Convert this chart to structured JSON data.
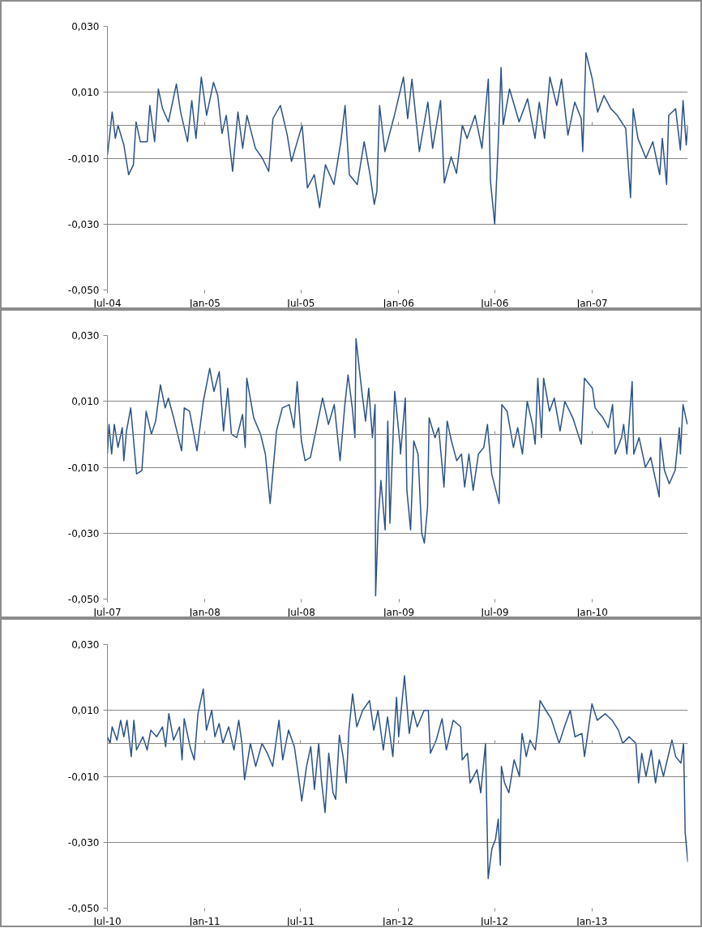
{
  "chart_data": [
    {
      "type": "line",
      "xlim": [
        "2004-07-01",
        "2007-06-30"
      ],
      "ylim": [
        -0.05,
        0.03
      ],
      "yticks": [
        {
          "value": -0.05,
          "label": "-0,050"
        },
        {
          "value": -0.03,
          "label": "-0,030"
        },
        {
          "value": -0.01,
          "label": "-0,010"
        },
        {
          "value": 0.01,
          "label": "0,010"
        },
        {
          "value": 0.03,
          "label": "0,030"
        }
      ],
      "xticks": [
        {
          "value": "2004-07-01",
          "label": "Jul-04"
        },
        {
          "value": "2005-01-01",
          "label": "Jan-05"
        },
        {
          "value": "2005-07-01",
          "label": "Jul-05"
        },
        {
          "value": "2006-01-01",
          "label": "Jan-06"
        },
        {
          "value": "2006-07-01",
          "label": "Jul-06"
        },
        {
          "value": "2007-01-01",
          "label": "Jan-07"
        }
      ],
      "grid": "y",
      "series": [
        {
          "color": "#2a5286",
          "x": [
            "2004-07-01",
            "2004-07-04",
            "2004-07-10",
            "2004-07-16",
            "2004-07-21",
            "2004-08-01",
            "2004-08-10",
            "2004-08-19",
            "2004-08-24",
            "2004-09-01",
            "2004-09-14",
            "2004-09-19",
            "2004-09-28",
            "2004-10-05",
            "2004-10-13",
            "2004-10-24",
            "2004-11-08",
            "2004-11-16",
            "2004-11-29",
            "2004-12-07",
            "2004-12-15",
            "2004-12-25",
            "2005-01-04",
            "2005-01-17",
            "2005-01-25",
            "2005-02-02",
            "2005-02-10",
            "2005-02-22",
            "2005-03-04",
            "2005-03-13",
            "2005-03-21",
            "2005-04-06",
            "2005-04-19",
            "2005-05-01",
            "2005-05-09",
            "2005-05-23",
            "2005-06-05",
            "2005-06-13",
            "2005-07-03",
            "2005-07-13",
            "2005-07-26",
            "2005-08-05",
            "2005-08-16",
            "2005-09-01",
            "2005-09-14",
            "2005-09-22",
            "2005-09-30",
            "2005-10-15",
            "2005-10-28",
            "2005-11-08",
            "2005-11-16",
            "2005-11-21",
            "2005-11-26",
            "2005-12-06",
            "2005-12-24",
            "2006-01-10",
            "2006-01-18",
            "2006-01-26",
            "2006-02-09",
            "2006-02-25",
            "2006-03-06",
            "2006-03-21",
            "2006-03-28",
            "2006-04-10",
            "2006-04-20",
            "2006-05-01",
            "2006-05-10",
            "2006-05-25",
            "2006-06-07",
            "2006-06-19",
            "2006-06-23",
            "2006-07-01",
            "2006-07-08",
            "2006-07-13",
            "2006-07-17",
            "2006-07-29",
            "2006-08-16",
            "2006-09-01",
            "2006-09-15",
            "2006-09-23",
            "2006-10-03",
            "2006-10-13",
            "2006-10-26",
            "2006-11-04",
            "2006-11-16",
            "2006-11-29",
            "2006-12-11",
            "2006-12-14",
            "2006-12-20",
            "2007-01-01",
            "2007-01-11",
            "2007-01-23",
            "2007-02-05",
            "2007-02-17",
            "2007-03-05",
            "2007-03-14",
            "2007-03-19",
            "2007-03-28",
            "2007-04-12",
            "2007-04-25",
            "2007-05-08",
            "2007-05-13",
            "2007-05-21",
            "2007-05-25",
            "2007-06-07",
            "2007-06-16",
            "2007-06-21",
            "2007-06-27",
            "2007-06-30"
          ],
          "values": [
            -0.009,
            -0.005,
            0.004,
            -0.004,
            0.0,
            -0.006,
            -0.015,
            -0.012,
            0.001,
            -0.005,
            -0.005,
            0.006,
            -0.005,
            0.011,
            0.005,
            0.001,
            0.0125,
            0.004,
            -0.005,
            0.0075,
            -0.004,
            0.0146,
            0.003,
            0.013,
            0.009,
            -0.0025,
            0.003,
            -0.014,
            0.004,
            -0.007,
            0.003,
            -0.007,
            -0.01,
            -0.014,
            0.002,
            0.006,
            -0.003,
            -0.011,
            0.0,
            -0.019,
            -0.015,
            -0.025,
            -0.012,
            -0.018,
            -0.005,
            0.006,
            -0.015,
            -0.018,
            -0.005,
            -0.015,
            -0.024,
            -0.02,
            0.006,
            -0.008,
            0.003,
            0.0146,
            0.002,
            0.014,
            -0.008,
            0.007,
            -0.007,
            0.0075,
            -0.0175,
            -0.0096,
            -0.0146,
            0.0,
            -0.004,
            0.003,
            -0.007,
            0.014,
            -0.017,
            -0.03,
            -0.004,
            0.0175,
            0.0,
            0.011,
            0.001,
            0.008,
            -0.004,
            0.007,
            -0.004,
            0.0146,
            0.006,
            0.014,
            -0.003,
            0.007,
            0.002,
            -0.008,
            0.022,
            0.014,
            0.004,
            0.009,
            0.005,
            0.003,
            -0.001,
            -0.022,
            0.005,
            -0.004,
            -0.01,
            -0.005,
            -0.015,
            -0.004,
            -0.018,
            0.003,
            0.005,
            -0.0075,
            0.0075,
            -0.006,
            0.0
          ]
        }
      ]
    },
    {
      "type": "line",
      "xlim": [
        "2007-07-01",
        "2010-06-30"
      ],
      "ylim": [
        -0.05,
        0.03
      ],
      "yticks": [
        {
          "value": -0.05,
          "label": "-0,050"
        },
        {
          "value": -0.03,
          "label": "-0,030"
        },
        {
          "value": -0.01,
          "label": "-0,010"
        },
        {
          "value": 0.01,
          "label": "0,010"
        },
        {
          "value": 0.03,
          "label": "0,030"
        }
      ],
      "xticks": [
        {
          "value": "2007-07-01",
          "label": "Jul-07"
        },
        {
          "value": "2008-01-01",
          "label": "Jan-08"
        },
        {
          "value": "2008-07-01",
          "label": "Jul-08"
        },
        {
          "value": "2009-01-01",
          "label": "Jan-09"
        },
        {
          "value": "2009-07-01",
          "label": "Jul-09"
        },
        {
          "value": "2010-01-01",
          "label": "Jan-10"
        }
      ],
      "grid": "y",
      "series": [
        {
          "color": "#2a5286",
          "x": [
            "2007-07-01",
            "2007-07-04",
            "2007-07-09",
            "2007-07-14",
            "2007-07-21",
            "2007-07-29",
            "2007-08-01",
            "2007-08-06",
            "2007-08-14",
            "2007-08-25",
            "2007-09-04",
            "2007-09-12",
            "2007-09-22",
            "2007-09-30",
            "2007-10-09",
            "2007-10-18",
            "2007-10-24",
            "2007-11-03",
            "2007-11-18",
            "2007-11-23",
            "2007-12-03",
            "2007-12-17",
            "2007-12-29",
            "2008-01-10",
            "2008-01-18",
            "2008-01-28",
            "2008-02-05",
            "2008-02-13",
            "2008-02-20",
            "2008-03-01",
            "2008-03-12",
            "2008-03-17",
            "2008-03-20",
            "2008-04-02",
            "2008-04-15",
            "2008-04-24",
            "2008-05-03",
            "2008-05-15",
            "2008-05-26",
            "2008-06-08",
            "2008-06-17",
            "2008-06-23",
            "2008-07-01",
            "2008-07-08",
            "2008-07-18",
            "2008-08-01",
            "2008-08-10",
            "2008-08-21",
            "2008-09-01",
            "2008-09-12",
            "2008-09-21",
            "2008-09-27",
            "2008-10-05",
            "2008-10-10",
            "2008-10-12",
            "2008-10-23",
            "2008-10-30",
            "2008-11-05",
            "2008-11-12",
            "2008-11-17",
            "2008-11-18",
            "2008-11-23",
            "2008-11-28",
            "2008-12-06",
            "2008-12-11",
            "2008-12-15",
            "2008-12-24",
            "2009-01-03",
            "2009-01-04",
            "2009-01-13",
            "2009-01-16",
            "2009-01-23",
            "2009-01-29",
            "2009-02-06",
            "2009-02-13",
            "2009-02-18",
            "2009-02-24",
            "2009-02-27",
            "2009-03-10",
            "2009-03-17",
            "2009-03-27",
            "2009-04-02",
            "2009-04-10",
            "2009-04-20",
            "2009-04-29",
            "2009-05-05",
            "2009-05-13",
            "2009-05-21",
            "2009-05-31",
            "2009-06-10",
            "2009-06-17",
            "2009-06-25",
            "2009-07-09",
            "2009-07-14",
            "2009-07-24",
            "2009-08-05",
            "2009-08-13",
            "2009-08-22",
            "2009-08-31",
            "2009-09-10",
            "2009-09-15",
            "2009-09-20",
            "2009-09-27",
            "2009-10-01",
            "2009-10-12",
            "2009-10-21",
            "2009-11-01",
            "2009-11-10",
            "2009-11-25",
            "2009-12-11",
            "2009-12-17",
            "2010-01-01",
            "2010-01-06",
            "2010-01-21",
            "2010-01-31",
            "2010-02-08",
            "2010-02-13",
            "2010-02-25",
            "2010-03-01",
            "2010-03-07",
            "2010-03-17",
            "2010-03-20",
            "2010-03-30",
            "2010-04-11",
            "2010-04-21",
            "2010-04-29",
            "2010-05-07",
            "2010-05-09",
            "2010-05-17",
            "2010-05-26",
            "2010-06-06",
            "2010-06-14",
            "2010-06-16",
            "2010-06-21",
            "2010-06-29"
          ],
          "values": [
            -0.006,
            0.003,
            -0.006,
            0.003,
            -0.004,
            0.002,
            -0.008,
            0.001,
            0.008,
            -0.012,
            -0.011,
            0.007,
            0.0,
            0.004,
            0.015,
            0.008,
            0.011,
            0.005,
            -0.005,
            0.008,
            0.007,
            -0.005,
            0.01,
            0.02,
            0.013,
            0.019,
            0.001,
            0.014,
            0.0,
            -0.001,
            0.006,
            -0.004,
            0.017,
            0.005,
            0.0,
            -0.006,
            -0.021,
            0.001,
            0.008,
            0.009,
            0.002,
            0.016,
            -0.002,
            -0.008,
            -0.007,
            0.004,
            0.011,
            0.003,
            0.009,
            -0.008,
            0.009,
            0.018,
            0.008,
            -0.001,
            0.029,
            0.013,
            0.004,
            0.014,
            -0.001,
            0.009,
            -0.049,
            -0.026,
            -0.014,
            -0.029,
            0.004,
            -0.027,
            0.013,
            -0.003,
            -0.006,
            0.011,
            -0.017,
            -0.029,
            -0.002,
            -0.006,
            -0.03,
            -0.033,
            -0.022,
            0.005,
            -0.001,
            0.002,
            -0.016,
            0.004,
            -0.002,
            -0.008,
            -0.006,
            -0.016,
            -0.006,
            -0.017,
            -0.006,
            -0.004,
            0.003,
            -0.012,
            -0.021,
            0.009,
            0.007,
            -0.004,
            0.002,
            -0.006,
            0.01,
            0.003,
            -0.003,
            0.017,
            -0.001,
            0.017,
            0.007,
            0.011,
            0.001,
            0.01,
            0.005,
            -0.003,
            0.017,
            0.014,
            0.008,
            0.005,
            0.002,
            0.009,
            -0.006,
            -0.001,
            0.003,
            -0.006,
            0.016,
            -0.006,
            -0.001,
            -0.01,
            -0.007,
            -0.013,
            -0.019,
            -0.001,
            -0.011,
            -0.015,
            -0.011,
            0.002,
            -0.006,
            0.009,
            0.003
          ]
        }
      ]
    },
    {
      "type": "line",
      "xlim": [
        "2010-07-01",
        "2013-07-01"
      ],
      "ylim": [
        -0.05,
        0.03
      ],
      "yticks": [
        {
          "value": -0.05,
          "label": "-0,050"
        },
        {
          "value": -0.03,
          "label": "-0,030"
        },
        {
          "value": -0.01,
          "label": "-0,010"
        },
        {
          "value": 0.01,
          "label": "0,010"
        },
        {
          "value": 0.03,
          "label": "0,030"
        }
      ],
      "xticks": [
        {
          "value": "2010-07-01",
          "label": "Jul-10"
        },
        {
          "value": "2011-01-01",
          "label": "Jan-11"
        },
        {
          "value": "2011-07-01",
          "label": "Jul-11"
        },
        {
          "value": "2012-01-01",
          "label": "Jan-12"
        },
        {
          "value": "2012-07-01",
          "label": "Jul-12"
        },
        {
          "value": "2013-01-01",
          "label": "Jan-13"
        }
      ],
      "grid": "y",
      "series": [
        {
          "color": "#2a5286",
          "x": [
            "2010-07-01",
            "2010-07-06",
            "2010-07-10",
            "2010-07-19",
            "2010-07-26",
            "2010-08-01",
            "2010-08-07",
            "2010-08-15",
            "2010-08-20",
            "2010-08-25",
            "2010-09-06",
            "2010-09-14",
            "2010-09-21",
            "2010-10-02",
            "2010-10-13",
            "2010-10-19",
            "2010-10-25",
            "2010-11-03",
            "2010-11-14",
            "2010-11-19",
            "2010-11-23",
            "2010-12-04",
            "2010-12-12",
            "2010-12-19",
            "2010-12-29",
            "2011-01-04",
            "2011-01-14",
            "2011-01-20",
            "2011-01-28",
            "2011-02-04",
            "2011-02-15",
            "2011-02-25",
            "2011-03-06",
            "2011-03-12",
            "2011-03-17",
            "2011-03-28",
            "2011-04-07",
            "2011-04-19",
            "2011-04-29",
            "2011-05-09",
            "2011-05-21",
            "2011-05-28",
            "2011-06-08",
            "2011-06-19",
            "2011-06-27",
            "2011-07-03",
            "2011-07-12",
            "2011-07-20",
            "2011-07-27",
            "2011-08-04",
            "2011-08-09",
            "2011-08-16",
            "2011-08-23",
            "2011-08-31",
            "2011-09-05",
            "2011-09-12",
            "2011-09-19",
            "2011-09-25",
            "2011-09-30",
            "2011-10-07",
            "2011-10-15",
            "2011-10-26",
            "2011-11-08",
            "2011-11-16",
            "2011-11-24",
            "2011-12-04",
            "2011-12-12",
            "2011-12-22",
            "2011-12-29",
            "2012-01-02",
            "2012-01-13",
            "2012-01-22",
            "2012-01-29",
            "2012-02-06",
            "2012-02-19",
            "2012-02-27",
            "2012-03-02",
            "2012-03-13",
            "2012-03-24",
            "2012-04-01",
            "2012-04-14",
            "2012-04-28",
            "2012-05-01",
            "2012-05-11",
            "2012-05-16",
            "2012-05-29",
            "2012-06-05",
            "2012-06-14",
            "2012-06-19",
            "2012-06-26",
            "2012-07-03",
            "2012-07-08",
            "2012-07-12",
            "2012-07-14",
            "2012-07-20",
            "2012-07-28",
            "2012-08-07",
            "2012-08-17",
            "2012-08-22",
            "2012-08-30",
            "2012-09-06",
            "2012-09-16",
            "2012-09-21",
            "2012-09-25",
            "2012-10-06",
            "2012-10-16",
            "2012-10-31",
            "2012-11-10",
            "2012-11-21",
            "2012-11-30",
            "2012-12-13",
            "2012-12-18",
            "2013-01-01",
            "2013-01-11",
            "2013-01-26",
            "2013-02-08",
            "2013-02-20",
            "2013-02-28",
            "2013-03-12",
            "2013-03-25",
            "2013-03-30",
            "2013-04-05",
            "2013-04-13",
            "2013-04-23",
            "2013-05-01",
            "2013-05-08",
            "2013-05-16",
            "2013-06-01",
            "2013-06-08",
            "2013-06-18",
            "2013-06-23",
            "2013-06-26",
            "2013-07-01"
          ],
          "values": [
            0.002,
            0.0,
            0.005,
            0.001,
            0.007,
            0.002,
            0.007,
            -0.004,
            0.007,
            -0.002,
            0.002,
            -0.002,
            0.004,
            0.002,
            0.005,
            -0.001,
            0.009,
            0.001,
            0.005,
            -0.005,
            0.0075,
            -0.001,
            -0.005,
            0.009,
            0.0165,
            0.004,
            0.01,
            0.002,
            0.006,
            0.0,
            0.005,
            -0.002,
            0.007,
            0.0,
            -0.011,
            0.0,
            -0.007,
            0.0,
            -0.003,
            -0.007,
            0.007,
            -0.005,
            0.004,
            -0.001,
            -0.01,
            -0.0175,
            -0.007,
            -0.001,
            -0.014,
            0.0,
            -0.011,
            -0.021,
            -0.003,
            -0.015,
            -0.017,
            0.0025,
            -0.004,
            -0.012,
            0.004,
            0.015,
            0.005,
            0.01,
            0.013,
            0.004,
            0.01,
            -0.002,
            0.008,
            -0.004,
            0.014,
            0.002,
            0.0205,
            0.003,
            0.01,
            0.005,
            0.01,
            0.01,
            -0.003,
            0.001,
            0.0075,
            -0.002,
            0.007,
            0.005,
            -0.005,
            -0.003,
            -0.012,
            -0.008,
            -0.015,
            0.0,
            -0.041,
            -0.032,
            -0.029,
            -0.023,
            -0.037,
            -0.007,
            -0.012,
            -0.015,
            -0.005,
            -0.01,
            0.003,
            -0.004,
            0.001,
            -0.002,
            0.005,
            0.013,
            0.01,
            0.0075,
            0.0,
            0.005,
            0.01,
            0.002,
            0.003,
            -0.004,
            0.012,
            0.007,
            0.009,
            0.007,
            0.004,
            0.0,
            0.002,
            0.0,
            -0.012,
            -0.003,
            -0.01,
            -0.002,
            -0.012,
            -0.005,
            -0.01,
            0.001,
            -0.004,
            -0.006,
            0.0,
            -0.027,
            -0.036
          ]
        }
      ]
    }
  ]
}
